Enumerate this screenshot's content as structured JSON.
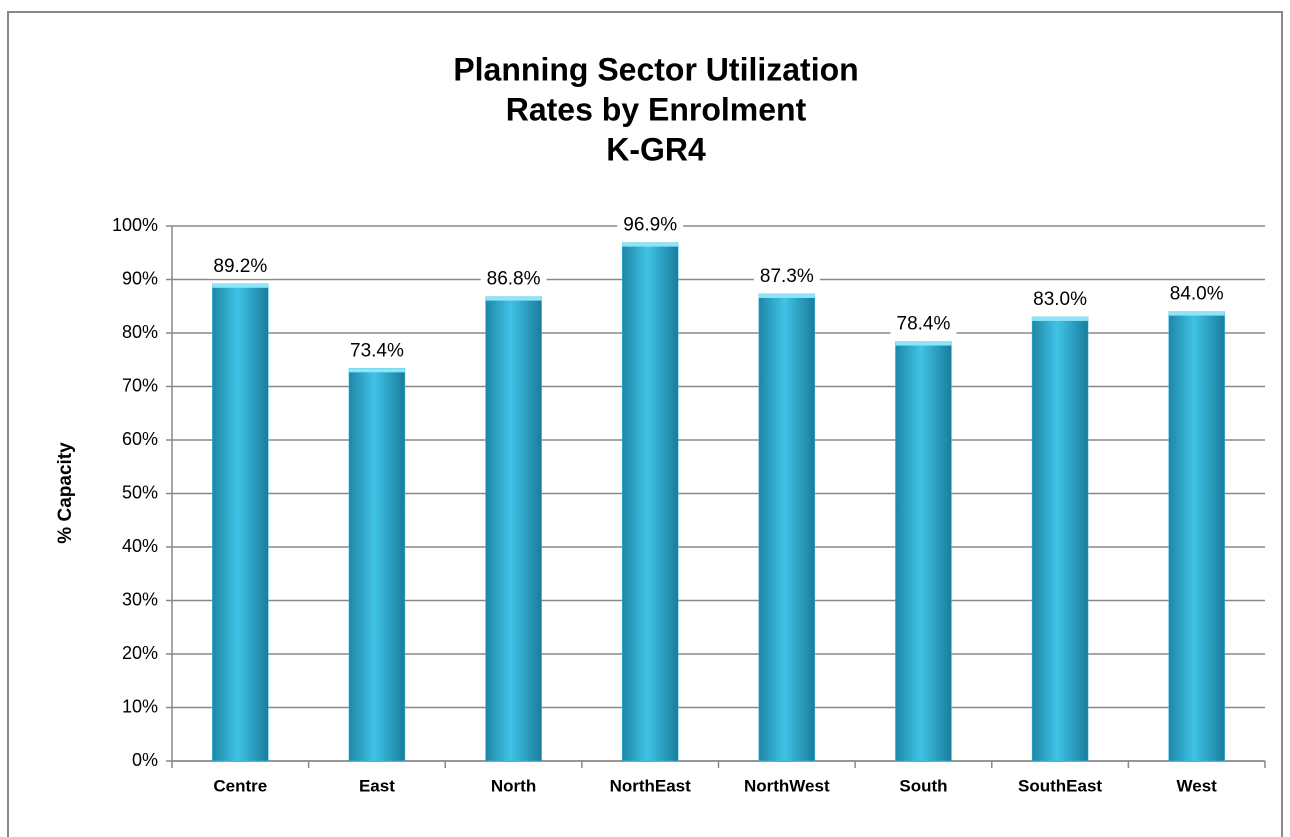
{
  "chart_data": {
    "type": "bar",
    "title": [
      "Planning Sector Utilization",
      "Rates by Enrolment",
      "K-GR4"
    ],
    "y_axis_label": "% Capacity",
    "categories": [
      "Centre",
      "East",
      "North",
      "NorthEast",
      "NorthWest",
      "South",
      "SouthEast",
      "West"
    ],
    "values": [
      89.2,
      73.4,
      86.8,
      96.9,
      87.3,
      78.4,
      83.0,
      84.0
    ],
    "value_labels": [
      "89.2%",
      "73.4%",
      "86.8%",
      "96.9%",
      "87.3%",
      "78.4%",
      "83.0%",
      "84.0%"
    ],
    "color": "#3bbde0",
    "ylim": [
      0,
      100
    ],
    "yticks": [
      {
        "value": 0,
        "label": "0%"
      },
      {
        "value": 10,
        "label": "10%"
      },
      {
        "value": 20,
        "label": "20%"
      },
      {
        "value": 30,
        "label": "30%"
      },
      {
        "value": 40,
        "label": "40%"
      },
      {
        "value": 50,
        "label": "50%"
      },
      {
        "value": 60,
        "label": "60%"
      },
      {
        "value": 70,
        "label": "70%"
      },
      {
        "value": 80,
        "label": "80%"
      },
      {
        "value": 90,
        "label": "90%"
      },
      {
        "value": 100,
        "label": "100%"
      }
    ],
    "grid": true
  }
}
